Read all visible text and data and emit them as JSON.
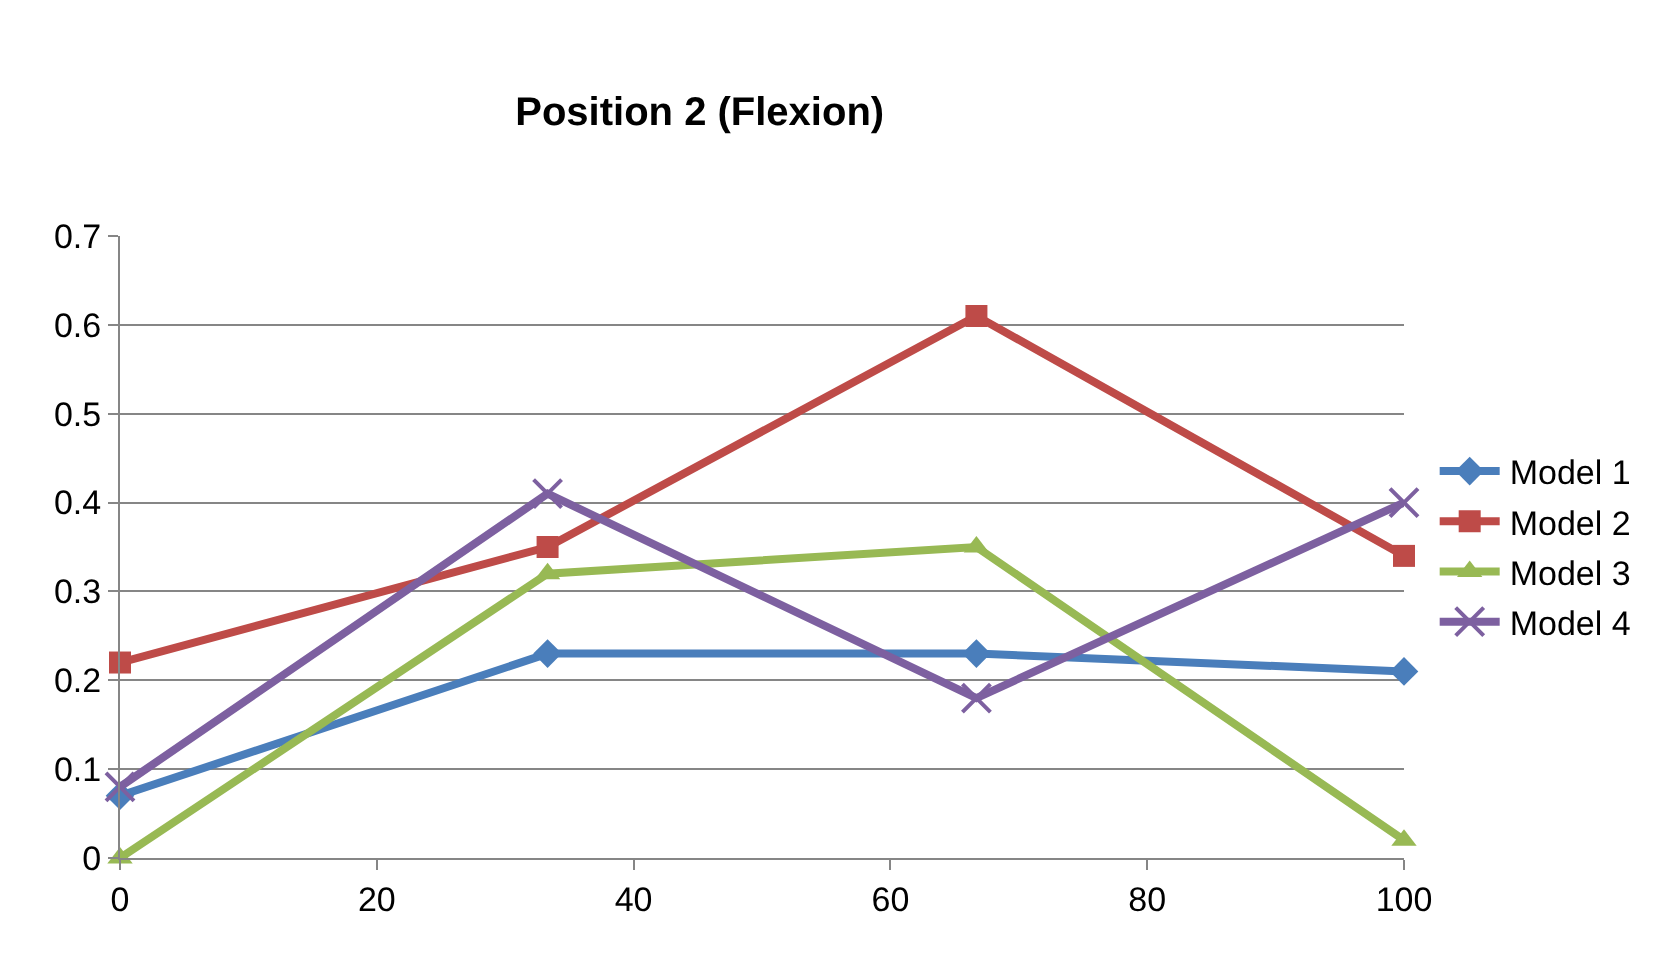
{
  "chart_data": {
    "type": "line",
    "title": "Position 2 (Flexion)",
    "x": [
      0,
      33.3,
      66.7,
      100
    ],
    "series": [
      {
        "name": "Model 1",
        "color": "#4a7ebb",
        "marker": "diamond",
        "values": [
          0.07,
          0.23,
          0.23,
          0.21
        ]
      },
      {
        "name": "Model 2",
        "color": "#be4b48",
        "marker": "square",
        "values": [
          0.22,
          0.35,
          0.61,
          0.34
        ]
      },
      {
        "name": "Model 3",
        "color": "#98b954",
        "marker": "triangle",
        "values": [
          0.0,
          0.32,
          0.35,
          0.02
        ]
      },
      {
        "name": "Model 4",
        "color": "#7d60a0",
        "marker": "cross",
        "values": [
          0.08,
          0.41,
          0.18,
          0.4
        ]
      }
    ],
    "xlim": [
      0,
      100
    ],
    "xticks": [
      0,
      20,
      40,
      60,
      80,
      100
    ],
    "ylim": [
      0,
      0.7
    ],
    "yticks": [
      0,
      0.1,
      0.2,
      0.3,
      0.4,
      0.5,
      0.6,
      0.7
    ],
    "grid": "y",
    "legend": "right",
    "line_style": "solid"
  }
}
